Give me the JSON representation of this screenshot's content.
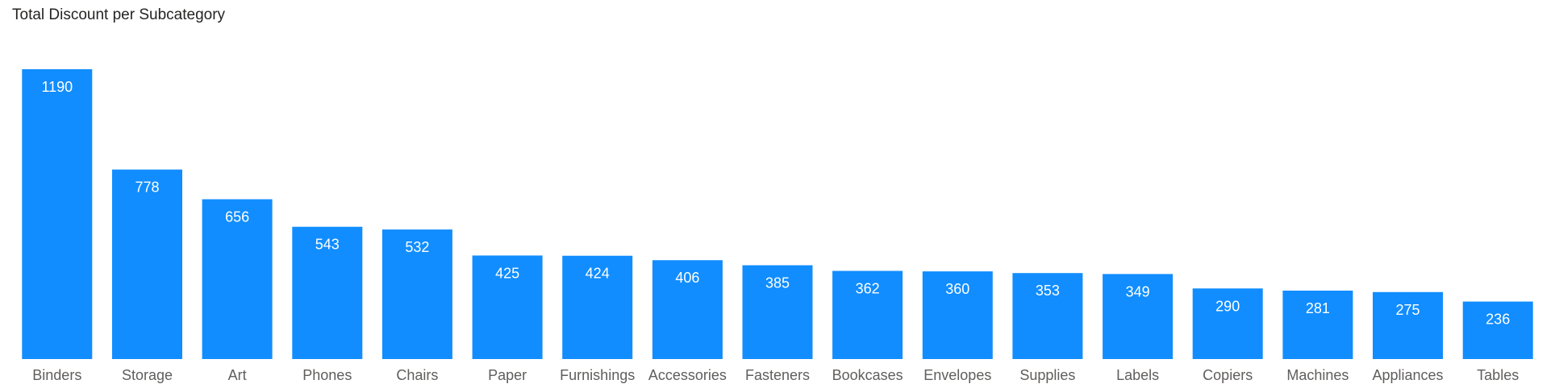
{
  "chart_data": {
    "type": "bar",
    "title": "Total Discount per Subcategory",
    "xlabel": "",
    "ylabel": "",
    "categories": [
      "Binders",
      "Storage",
      "Art",
      "Phones",
      "Chairs",
      "Paper",
      "Furnishings",
      "Accessories",
      "Fasteners",
      "Bookcases",
      "Envelopes",
      "Supplies",
      "Labels",
      "Copiers",
      "Machines",
      "Appliances",
      "Tables"
    ],
    "values": [
      1190,
      778,
      656,
      543,
      532,
      425,
      424,
      406,
      385,
      362,
      360,
      353,
      349,
      290,
      281,
      275,
      236
    ],
    "ylim": [
      0,
      1190
    ],
    "grid": false,
    "data_labels": true,
    "colors": {
      "bar": "#118DFF",
      "bar_label": "#ffffff",
      "tick_label": "#605E5C",
      "title": "#252423"
    }
  }
}
